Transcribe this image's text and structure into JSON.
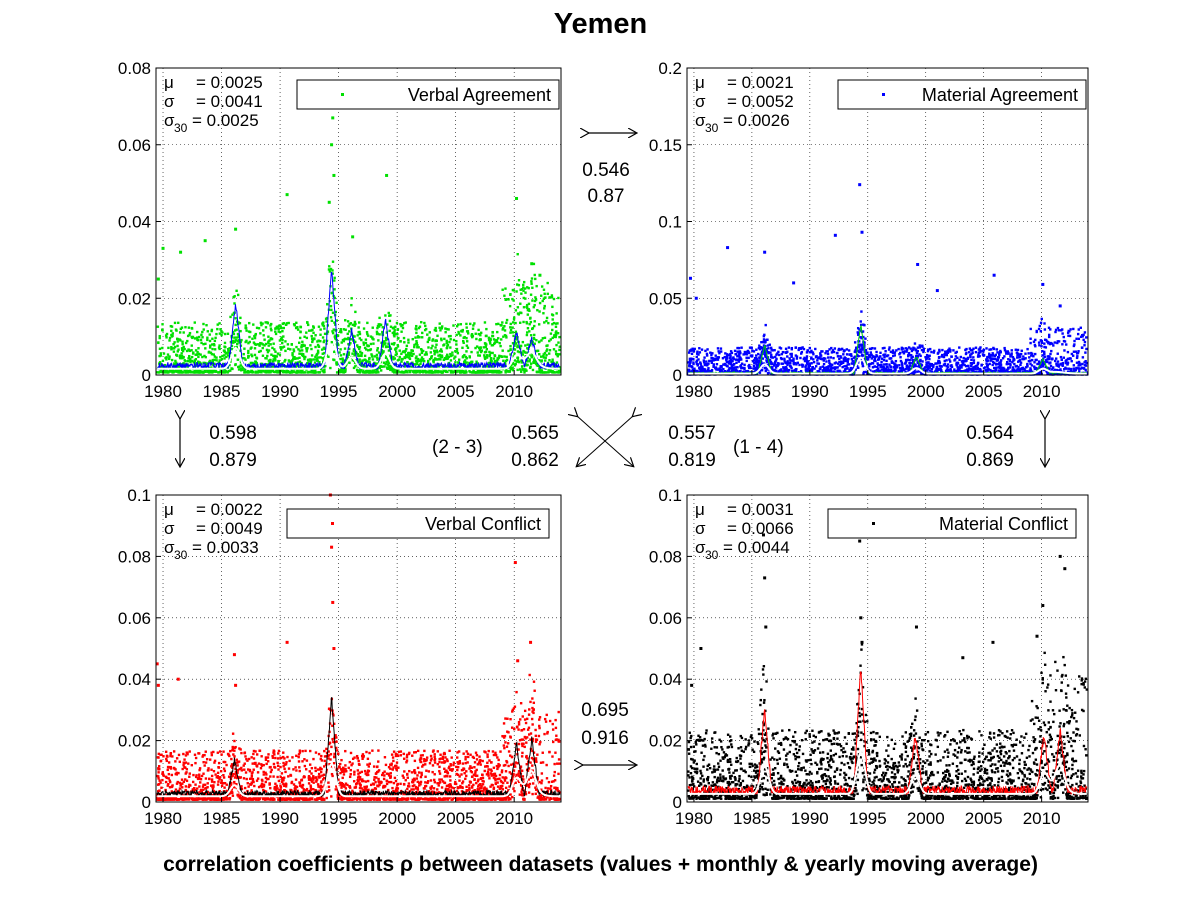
{
  "title": "Yemen",
  "caption": "correlation coefficients ρ between datasets (values + monthly & yearly moving average)",
  "colors": {
    "green": "#00e000",
    "blue": "#0000ff",
    "red": "#ff0000",
    "black": "#000000",
    "green_avg": "#0000ff",
    "blue_avg": "#00cc00",
    "red_avg": "#000000",
    "black_avg": "#ff0000",
    "yearly_avg": "#ffffff"
  },
  "correlations": {
    "top": {
      "r1": "0.546",
      "r2": "0.87"
    },
    "left": {
      "r1": "0.598",
      "r2": "0.879"
    },
    "right": {
      "r1": "0.564",
      "r2": "0.869"
    },
    "bottom": {
      "r1": "0.695",
      "r2": "0.916"
    },
    "diag_left": {
      "label": "(2 - 3)",
      "r1": "0.565",
      "r2": "0.862"
    },
    "diag_right": {
      "label": "(1 - 4)",
      "r1": "0.557",
      "r2": "0.819"
    }
  },
  "chart_data": [
    {
      "type": "scatter",
      "legend": "Verbal Agreement",
      "legend_position": "top-right",
      "color": "#00e000",
      "stats": {
        "mu": "= 0.0025",
        "sigma": "= 0.0041",
        "sigma30": "= 0.0025"
      },
      "xlim": [
        1979.4,
        2014.0
      ],
      "ylim": [
        0,
        0.08
      ],
      "xticks": [
        "1980",
        "1985",
        "1990",
        "1995",
        "2000",
        "2005",
        "2010"
      ],
      "xtick_values": [
        1980,
        1985,
        1990,
        1995,
        2000,
        2005,
        2010
      ],
      "yticks": [
        "0",
        "0.02",
        "0.04",
        "0.06",
        "0.08"
      ],
      "ytick_values": [
        0,
        0.02,
        0.04,
        0.06,
        0.08
      ],
      "grid": true,
      "base": 0.0022,
      "spread": 0.0041,
      "spikes": [
        [
          1979.6,
          0.025
        ],
        [
          1980.0,
          0.033
        ],
        [
          1981.5,
          0.032
        ],
        [
          1983.6,
          0.035
        ],
        [
          1986.2,
          0.038
        ],
        [
          1990.6,
          0.047
        ],
        [
          1994.2,
          0.045
        ],
        [
          1994.4,
          0.06
        ],
        [
          1994.5,
          0.067
        ],
        [
          1994.6,
          0.052
        ],
        [
          1996.2,
          0.036
        ],
        [
          1999.1,
          0.052
        ],
        [
          2010.2,
          0.046
        ],
        [
          2011.5,
          0.029
        ],
        [
          2012.2,
          0.026
        ]
      ],
      "bumps": [
        [
          1986.2,
          0.018
        ],
        [
          1994.4,
          0.028
        ],
        [
          1996.1,
          0.01
        ],
        [
          1999.0,
          0.013
        ],
        [
          2010.2,
          0.01
        ],
        [
          2011.5,
          0.008
        ]
      ]
    },
    {
      "type": "scatter",
      "legend": "Material Agreement",
      "legend_position": "top-right",
      "color": "#0000ff",
      "stats": {
        "mu": "= 0.0021",
        "sigma": "= 0.0052",
        "sigma30": "= 0.0026"
      },
      "xlim": [
        1979.4,
        2014.0
      ],
      "ylim": [
        0,
        0.2
      ],
      "xticks": [
        "1980",
        "1985",
        "1990",
        "1995",
        "2000",
        "2005",
        "2010"
      ],
      "xtick_values": [
        1980,
        1985,
        1990,
        1995,
        2000,
        2005,
        2010
      ],
      "yticks": [
        "0",
        "0.05",
        "0.1",
        "0.15",
        "0.2"
      ],
      "ytick_values": [
        0,
        0.05,
        0.1,
        0.15,
        0.2
      ],
      "grid": true,
      "base": 0.0012,
      "spread": 0.0055,
      "spikes": [
        [
          1979.7,
          0.063
        ],
        [
          1980.2,
          0.05
        ],
        [
          1982.9,
          0.083
        ],
        [
          1986.1,
          0.08
        ],
        [
          1988.6,
          0.06
        ],
        [
          1992.2,
          0.091
        ],
        [
          1994.3,
          0.124
        ],
        [
          1994.5,
          0.093
        ],
        [
          1999.3,
          0.072
        ],
        [
          2001.0,
          0.055
        ],
        [
          2005.9,
          0.065
        ],
        [
          2010.1,
          0.059
        ],
        [
          2011.6,
          0.045
        ]
      ],
      "bumps": [
        [
          1986.1,
          0.02
        ],
        [
          1994.4,
          0.035
        ],
        [
          1999.2,
          0.012
        ],
        [
          2010.1,
          0.01
        ]
      ]
    },
    {
      "type": "scatter",
      "legend": "Verbal Conflict",
      "legend_position": "top-right",
      "color": "#ff0000",
      "stats": {
        "mu": "= 0.0022",
        "sigma": "= 0.0049",
        "sigma30": "= 0.0033"
      },
      "xlim": [
        1979.4,
        2014.0
      ],
      "ylim": [
        0,
        0.1
      ],
      "xticks": [
        "1980",
        "1985",
        "1990",
        "1995",
        "2000",
        "2005",
        "2010"
      ],
      "xtick_values": [
        1980,
        1985,
        1990,
        1995,
        2000,
        2005,
        2010
      ],
      "yticks": [
        "0",
        "0.02",
        "0.04",
        "0.06",
        "0.08",
        "0.1"
      ],
      "ytick_values": [
        0,
        0.02,
        0.04,
        0.06,
        0.08,
        0.1
      ],
      "grid": true,
      "base": 0.0025,
      "spread": 0.005,
      "spikes": [
        [
          1979.5,
          0.045
        ],
        [
          1979.6,
          0.038
        ],
        [
          1981.3,
          0.04
        ],
        [
          1986.1,
          0.048
        ],
        [
          1986.2,
          0.038
        ],
        [
          1990.6,
          0.052
        ],
        [
          1994.3,
          0.1
        ],
        [
          1994.4,
          0.083
        ],
        [
          1994.5,
          0.065
        ],
        [
          1994.6,
          0.05
        ],
        [
          2010.1,
          0.078
        ],
        [
          2010.3,
          0.046
        ],
        [
          2011.4,
          0.052
        ]
      ],
      "bumps": [
        [
          1986.1,
          0.012
        ],
        [
          1994.4,
          0.035
        ],
        [
          2010.2,
          0.018
        ],
        [
          2011.5,
          0.02
        ]
      ]
    },
    {
      "type": "scatter",
      "legend": "Material Conflict",
      "legend_position": "top-right",
      "color": "#000000",
      "stats": {
        "mu": "= 0.0031",
        "sigma": "= 0.0066",
        "sigma30": "= 0.0044"
      },
      "xlim": [
        1979.4,
        2014.0
      ],
      "ylim": [
        0,
        0.1
      ],
      "xticks": [
        "1980",
        "1985",
        "1990",
        "1995",
        "2000",
        "2005",
        "2010"
      ],
      "xtick_values": [
        1980,
        1985,
        1990,
        1995,
        2000,
        2005,
        2010
      ],
      "yticks": [
        "0",
        "0.02",
        "0.04",
        "0.06",
        "0.08",
        "0.1"
      ],
      "ytick_values": [
        0,
        0.02,
        0.04,
        0.06,
        0.08,
        0.1
      ],
      "grid": true,
      "base": 0.0035,
      "spread": 0.007,
      "spikes": [
        [
          1979.8,
          0.038
        ],
        [
          1980.6,
          0.05
        ],
        [
          1986.0,
          0.087
        ],
        [
          1986.1,
          0.073
        ],
        [
          1986.2,
          0.057
        ],
        [
          1994.3,
          0.085
        ],
        [
          1994.4,
          0.06
        ],
        [
          1994.5,
          0.052
        ],
        [
          1999.2,
          0.057
        ],
        [
          2003.2,
          0.047
        ],
        [
          2005.8,
          0.052
        ],
        [
          2009.6,
          0.054
        ],
        [
          2010.1,
          0.064
        ],
        [
          2011.6,
          0.08
        ],
        [
          2012.0,
          0.076
        ]
      ],
      "bumps": [
        [
          1986.1,
          0.03
        ],
        [
          1994.4,
          0.045
        ],
        [
          1999.1,
          0.02
        ],
        [
          2010.2,
          0.02
        ],
        [
          2011.6,
          0.022
        ]
      ]
    }
  ]
}
